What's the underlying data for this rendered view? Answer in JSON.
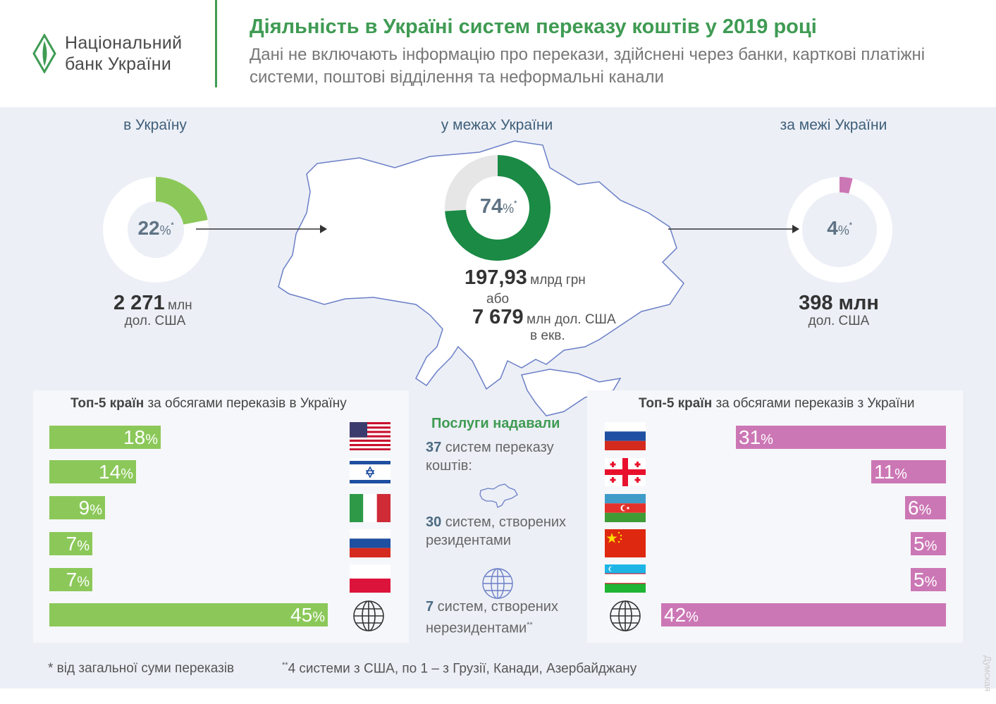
{
  "header": {
    "logo_line1": "Національний",
    "logo_line2": "банк України",
    "title": "Діяльність в Україні систем переказу коштів у 2019 році",
    "subtitle": "Дані не включають інформацію про перекази, здійснені через банки, карткові платіжні системи, поштові відділення та неформальні канали"
  },
  "sections": {
    "in": {
      "title": "в Україну",
      "percent": "22",
      "pct_sign": "%",
      "star": "*",
      "amount": "2 271",
      "unit": "млн",
      "unit2": "дол. США"
    },
    "within": {
      "title": "у межах України",
      "percent": "74",
      "pct_sign": "%",
      "star": "*",
      "amount1": "197,93",
      "unit1": "млрд грн",
      "or": "або",
      "amount2": "7 679",
      "unit2": "млн дол. США",
      "unit3": "в екв."
    },
    "out": {
      "title": "за межі України",
      "percent": "4",
      "pct_sign": "%",
      "star": "*",
      "amount": "398 млн",
      "unit": "дол. США"
    }
  },
  "colors": {
    "green": "#8bc859",
    "dark_green": "#1a8a44",
    "pink": "#cc77b5",
    "title_green": "#3f9b53"
  },
  "chart_data": [
    {
      "type": "pie",
      "title": "в Україну",
      "values": [
        22,
        78
      ]
    },
    {
      "type": "pie",
      "title": "у межах України",
      "values": [
        74,
        26
      ]
    },
    {
      "type": "pie",
      "title": "за межі України",
      "values": [
        4,
        96
      ]
    },
    {
      "type": "bar",
      "title_bold": "Топ-5 країн",
      "title_rest": " за обсягами переказів в Україну",
      "categories": [
        "usa-flag",
        "israel-flag",
        "italy-flag",
        "russia-flag",
        "poland-flag",
        "globe-icon"
      ],
      "values": [
        18,
        14,
        9,
        7,
        7,
        45
      ],
      "labels": [
        "18",
        "14",
        "9",
        "7",
        "7",
        "45"
      ],
      "pct_sign": "%"
    },
    {
      "type": "bar",
      "title_bold": "Топ-5 країн",
      "title_rest": " за обсягами переказів з України",
      "categories": [
        "russia-flag",
        "georgia-flag",
        "azerbaijan-flag",
        "china-flag",
        "uzbekistan-flag",
        "globe-icon"
      ],
      "values": [
        31,
        11,
        6,
        5,
        5,
        42
      ],
      "labels": [
        "31",
        "11",
        "6",
        "5",
        "5",
        "42"
      ],
      "pct_sign": "%"
    }
  ],
  "services": {
    "title": "Послуги надавали",
    "item1_num": "37",
    "item1_text": " систем переказу коштів:",
    "item2_num": "30",
    "item2_text": " систем, створених резидентами",
    "item3_num": "7",
    "item3_text": " систем, створених нерезидентами",
    "item3_sup": "**"
  },
  "footnotes": {
    "f1": "* від загальної суми переказів",
    "f2_sup": "**",
    "f2": "4 системи з США, по 1 – з Грузії, Канади, Азербайджану"
  },
  "watermark": "Думская"
}
